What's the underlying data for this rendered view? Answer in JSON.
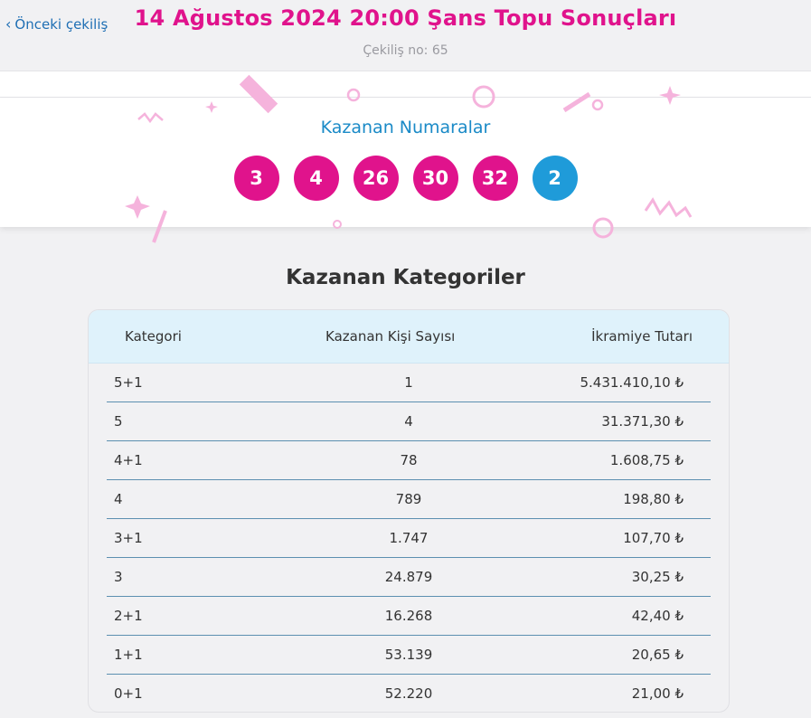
{
  "header": {
    "back_label": "Önceki çekiliş",
    "title": "14 Ağustos 2024 20:00 Şans Topu Sonuçları",
    "draw_number": "Çekiliş no: 65"
  },
  "winning": {
    "title": "Kazanan Numaralar",
    "numbers": [
      "3",
      "4",
      "26",
      "30",
      "32"
    ],
    "plus_number": "2"
  },
  "categories": {
    "title": "Kazanan Kategoriler",
    "headers": [
      "Kategori",
      "Kazanan Kişi Sayısı",
      "İkramiye Tutarı"
    ],
    "rows": [
      {
        "category": "5+1",
        "winners": "1",
        "prize": "5.431.410,10 ₺"
      },
      {
        "category": "5",
        "winners": "4",
        "prize": "31.371,30 ₺"
      },
      {
        "category": "4+1",
        "winners": "78",
        "prize": "1.608,75 ₺"
      },
      {
        "category": "4",
        "winners": "789",
        "prize": "198,80 ₺"
      },
      {
        "category": "3+1",
        "winners": "1.747",
        "prize": "107,70 ₺"
      },
      {
        "category": "3",
        "winners": "24.879",
        "prize": "30,25 ₺"
      },
      {
        "category": "2+1",
        "winners": "16.268",
        "prize": "42,40 ₺"
      },
      {
        "category": "1+1",
        "winners": "53.139",
        "prize": "20,65 ₺"
      },
      {
        "category": "0+1",
        "winners": "52.220",
        "prize": "21,00 ₺"
      }
    ]
  },
  "colors": {
    "brand_pink": "#e0138c",
    "brand_blue": "#1f9bd9",
    "header_bg": "#dff2fb",
    "deco_pink": "#f5b3dc"
  },
  "icons": {
    "back": "chevron-left-icon"
  }
}
